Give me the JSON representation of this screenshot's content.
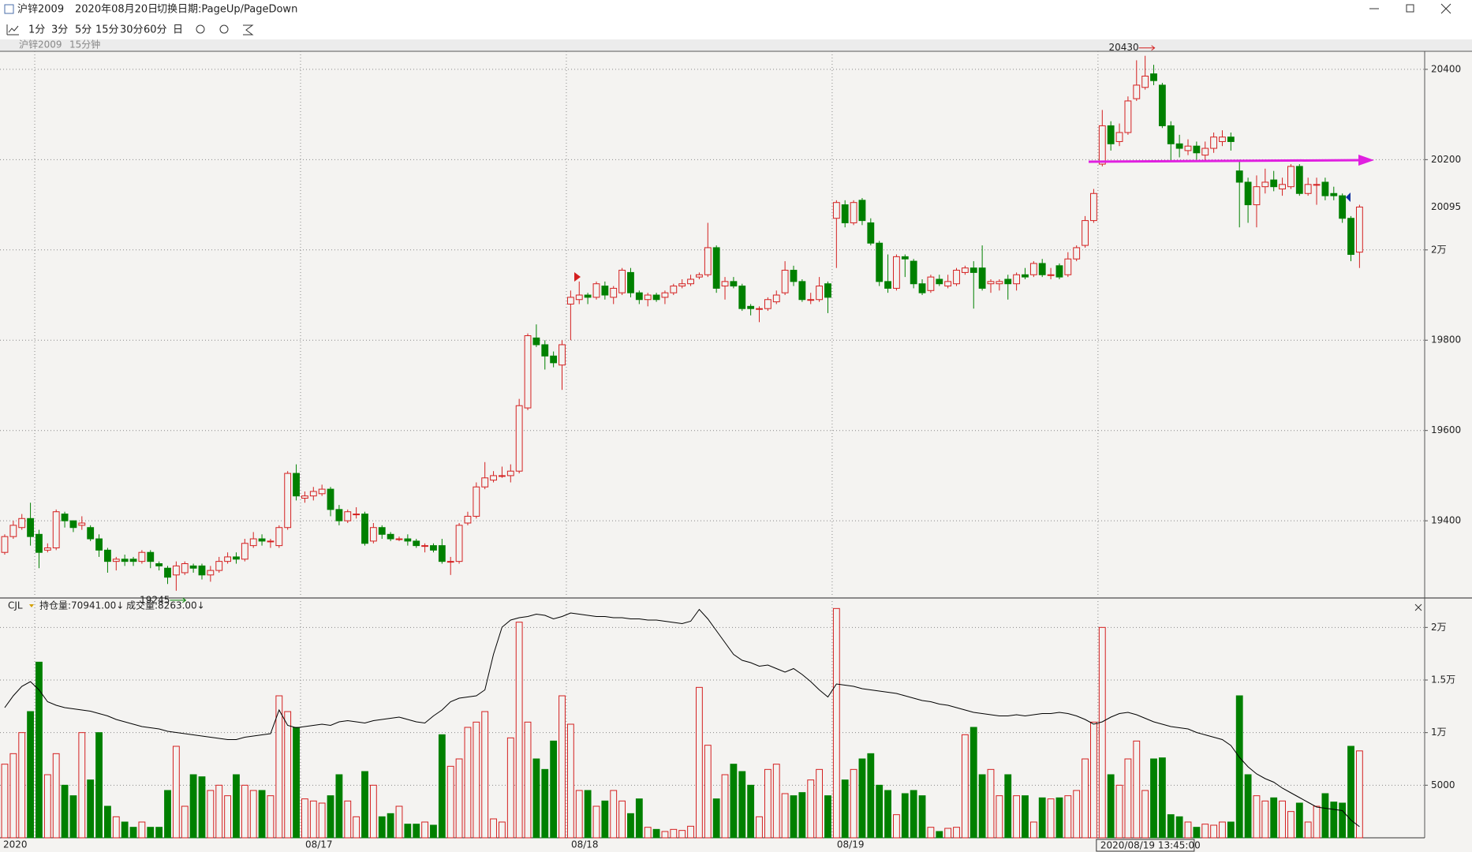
{
  "window": {
    "title": "沪锌2009",
    "date": "2020年08月20日",
    "hint": "切换日期:PageUp/PageDown"
  },
  "toolbar": [
    "1分",
    "3分",
    "5分",
    "15分",
    "30分",
    "60分",
    "日"
  ],
  "panel_header": {
    "symbol": "沪锌2009",
    "period": "15分钟"
  },
  "chart_data": [
    {
      "type": "candlestick",
      "up_color": "#d42020",
      "down_color": "#008000",
      "open": [
        19330,
        19365,
        19385,
        19405,
        19370,
        19335,
        19340,
        19415,
        19400,
        19390,
        19385,
        19360,
        19335,
        19310,
        19315,
        19315,
        19310,
        19330,
        19305,
        19295,
        19280,
        19285,
        19300,
        19300,
        19280,
        19290,
        19310,
        19320,
        19315,
        19345,
        19360,
        19355,
        19345,
        19385,
        19505,
        19450,
        19455,
        19460,
        19470,
        19425,
        19400,
        19415,
        19415,
        19355,
        19385,
        19370,
        19360,
        19360,
        19355,
        19345,
        19345,
        19345,
        19310,
        19310,
        19395,
        19410,
        19475,
        19490,
        19500,
        19500,
        19510,
        19650,
        19805,
        19790,
        19765,
        19745,
        19880,
        19890,
        19900,
        19895,
        19920,
        19895,
        19905,
        19950,
        19905,
        19890,
        19900,
        19895,
        19905,
        19920,
        19925,
        19940,
        19945,
        20005,
        19920,
        19930,
        19920,
        19875,
        19870,
        19870,
        19885,
        19905,
        19955,
        19930,
        19890,
        19890,
        19925,
        20070,
        20100,
        20060,
        20110,
        20060,
        20015,
        19930,
        19915,
        19985,
        19975,
        19925,
        19910,
        19935,
        19920,
        19925,
        19950,
        19960,
        19960,
        19925,
        19925,
        19935,
        19925,
        19945,
        19945,
        19970,
        19945,
        19965,
        19945,
        19980,
        20010,
        20065,
        20190,
        20275,
        20240,
        20260,
        20335,
        20360,
        20390,
        20365,
        20275,
        20235,
        20220,
        20230,
        20210,
        20225,
        20240,
        20250,
        20175,
        20150,
        20100,
        20140,
        20155,
        20135,
        20140,
        20185,
        20125,
        20145,
        20150,
        20125,
        20120,
        20070,
        19995
      ],
      "high": [
        19370,
        19400,
        19415,
        19440,
        19380,
        19350,
        19425,
        19420,
        19400,
        19410,
        19390,
        19370,
        19340,
        19320,
        19325,
        19320,
        19335,
        19335,
        19310,
        19300,
        19310,
        19310,
        19305,
        19305,
        19300,
        19320,
        19330,
        19330,
        19360,
        19375,
        19370,
        19360,
        19390,
        19510,
        19525,
        19465,
        19475,
        19480,
        19475,
        19435,
        19425,
        19430,
        19420,
        19395,
        19390,
        19375,
        19365,
        19370,
        19360,
        19350,
        19350,
        19360,
        19320,
        19395,
        19420,
        19485,
        19530,
        19510,
        19520,
        19525,
        19670,
        19815,
        19835,
        19800,
        19775,
        19800,
        19910,
        19930,
        19905,
        19930,
        19930,
        19920,
        19960,
        19960,
        19910,
        19905,
        19905,
        19910,
        19925,
        19935,
        19945,
        19950,
        20060,
        20010,
        19940,
        19940,
        19925,
        19880,
        19875,
        19895,
        19910,
        19975,
        19965,
        19935,
        19905,
        19940,
        19930,
        20110,
        20110,
        20110,
        20115,
        20070,
        20020,
        19990,
        19990,
        19990,
        19980,
        19935,
        19945,
        19945,
        19945,
        19960,
        19965,
        19975,
        20010,
        19935,
        19935,
        19945,
        19950,
        19960,
        19975,
        19980,
        19960,
        19970,
        19995,
        20010,
        20075,
        20135,
        20310,
        20285,
        20280,
        20340,
        20420,
        20430,
        20410,
        20370,
        20285,
        20255,
        20245,
        20240,
        20240,
        20260,
        20265,
        20260,
        20200,
        20160,
        20165,
        20180,
        20175,
        20160,
        20190,
        20190,
        20160,
        20160,
        20160,
        20140,
        20125,
        20075,
        20100
      ],
      "low": [
        19325,
        19360,
        19380,
        19345,
        19295,
        19330,
        19335,
        19385,
        19375,
        19380,
        19355,
        19320,
        19285,
        19290,
        19300,
        19300,
        19305,
        19295,
        19290,
        19260,
        19245,
        19280,
        19285,
        19270,
        19265,
        19285,
        19305,
        19305,
        19310,
        19340,
        19345,
        19340,
        19340,
        19380,
        19445,
        19440,
        19445,
        19455,
        19410,
        19390,
        19395,
        19405,
        19345,
        19350,
        19360,
        19355,
        19355,
        19345,
        19340,
        19330,
        19330,
        19305,
        19280,
        19305,
        19390,
        19405,
        19470,
        19485,
        19495,
        19485,
        19505,
        19645,
        19785,
        19735,
        19740,
        19690,
        19800,
        19880,
        19880,
        19890,
        19890,
        19880,
        19900,
        19895,
        19880,
        19875,
        19885,
        19880,
        19900,
        19915,
        19920,
        19935,
        19940,
        19905,
        19890,
        19915,
        19865,
        19855,
        19840,
        19865,
        19880,
        19900,
        19920,
        19885,
        19880,
        19885,
        19860,
        19960,
        20050,
        20055,
        20055,
        20010,
        19920,
        19905,
        19910,
        19940,
        19915,
        19900,
        19905,
        19920,
        19915,
        19920,
        19945,
        19870,
        19910,
        19905,
        19910,
        19890,
        19910,
        19935,
        19940,
        19940,
        19935,
        19935,
        19940,
        19975,
        20005,
        20060,
        20185,
        20220,
        20230,
        20255,
        20330,
        20355,
        20365,
        20270,
        20195,
        20205,
        20210,
        20200,
        20195,
        20215,
        20230,
        20220,
        20050,
        20060,
        20050,
        20125,
        20130,
        20120,
        20135,
        20120,
        20120,
        20100,
        20110,
        20110,
        20060,
        19975,
        19960
      ],
      "close": [
        19365,
        19390,
        19405,
        19365,
        19330,
        19340,
        19420,
        19400,
        19385,
        19395,
        19360,
        19335,
        19310,
        19315,
        19310,
        19310,
        19330,
        19310,
        19300,
        19275,
        19300,
        19305,
        19295,
        19280,
        19290,
        19310,
        19320,
        19315,
        19350,
        19360,
        19355,
        19355,
        19385,
        19505,
        19455,
        19455,
        19465,
        19470,
        19425,
        19400,
        19420,
        19415,
        19350,
        19385,
        19370,
        19360,
        19360,
        19355,
        19345,
        19345,
        19335,
        19310,
        19310,
        19390,
        19410,
        19475,
        19495,
        19500,
        19500,
        19510,
        19655,
        19810,
        19790,
        19765,
        19750,
        19790,
        19895,
        19900,
        19895,
        19925,
        19900,
        19915,
        19955,
        19905,
        19890,
        19900,
        19890,
        19905,
        19920,
        19925,
        19935,
        19945,
        20005,
        19915,
        19930,
        19920,
        19870,
        19870,
        19870,
        19890,
        19900,
        19955,
        19930,
        19890,
        19890,
        19920,
        19895,
        20105,
        20060,
        20105,
        20065,
        20015,
        19930,
        19915,
        19985,
        19980,
        19925,
        19905,
        19940,
        19925,
        19930,
        19955,
        19960,
        19950,
        19915,
        19930,
        19930,
        19925,
        19945,
        19940,
        19970,
        19945,
        19945,
        19940,
        19980,
        20005,
        20065,
        20125,
        20275,
        20235,
        20260,
        20330,
        20365,
        20385,
        20375,
        20275,
        20235,
        20225,
        20230,
        20215,
        20225,
        20250,
        20250,
        20240,
        20150,
        20100,
        20140,
        20150,
        20140,
        20145,
        20185,
        20125,
        20145,
        20145,
        20120,
        20120,
        20070,
        19990,
        20095
      ],
      "xlim": [
        -0.55,
        165.6
      ],
      "ylim": [
        19229,
        20440
      ],
      "grid": true,
      "yticks": [
        20400,
        20200,
        {
          "value": 20000,
          "label": "2万"
        },
        19800,
        19600,
        19400
      ],
      "xticks": [
        {
          "value": 3.5,
          "label": "2020"
        },
        {
          "value": 34.5,
          "label": "08/17"
        },
        {
          "value": 65.5,
          "label": "08/18"
        },
        {
          "value": 96.5,
          "label": "08/19"
        }
      ],
      "cursor": {
        "value": 127.5,
        "label": "2020/08/19 13:45:00"
      }
    },
    {
      "type": "volume",
      "title": "CJL",
      "ylim": [
        0,
        22500
      ],
      "y2lim": [
        70000,
        90000
      ],
      "yticks": [
        5000,
        {
          "value": 10000,
          "label": "1万"
        },
        {
          "value": 15000,
          "label": "1.5万"
        },
        {
          "value": 20000,
          "label": "2万"
        }
      ],
      "series": [
        {
          "legend": "持仓量:70941.00↓",
          "axis": "y2",
          "color": "#000000",
          "values": [
            81000,
            82000,
            82800,
            83200,
            82500,
            81500,
            81200,
            81000,
            80900,
            80800,
            80700,
            80500,
            80300,
            80000,
            79800,
            79600,
            79400,
            79300,
            79200,
            79000,
            78900,
            78800,
            78700,
            78600,
            78500,
            78400,
            78300,
            78300,
            78500,
            78600,
            78700,
            78800,
            80800,
            79500,
            79300,
            79400,
            79500,
            79600,
            79500,
            79800,
            79900,
            79800,
            79700,
            79900,
            80000,
            80100,
            80200,
            80000,
            79800,
            79700,
            80300,
            80800,
            81500,
            81800,
            81900,
            82000,
            82500,
            85500,
            87800,
            88400,
            88600,
            88700,
            88900,
            88800,
            88500,
            88700,
            89000,
            88900,
            88800,
            88700,
            88700,
            88600,
            88600,
            88500,
            88500,
            88400,
            88400,
            88300,
            88200,
            88100,
            88300,
            89300,
            88500,
            87500,
            86500,
            85500,
            85000,
            84800,
            84500,
            84600,
            84300,
            84000,
            84300,
            83800,
            83200,
            82500,
            81900,
            83000,
            82900,
            82800,
            82600,
            82500,
            82400,
            82300,
            82200,
            82000,
            81800,
            81600,
            81500,
            81300,
            81200,
            81000,
            80800,
            80600,
            80500,
            80400,
            80300,
            80300,
            80400,
            80300,
            80400,
            80500,
            80500,
            80600,
            80500,
            80300,
            80000,
            79600,
            79800,
            80200,
            80500,
            80600,
            80400,
            80100,
            79800,
            79600,
            79400,
            79300,
            79200,
            78900,
            78700,
            78500,
            78300,
            77800,
            76800,
            76000,
            75400,
            75000,
            74700,
            74200,
            73800,
            73400,
            73000,
            72600,
            72500,
            72400,
            72300,
            71500,
            70941
          ]
        },
        {
          "legend": "成交量:8263.00↓",
          "color": "#d42020",
          "values": [
            7000,
            8000,
            10000,
            12000,
            16700,
            6000,
            8000,
            5000,
            4000,
            10000,
            5500,
            10000,
            3000,
            2000,
            1500,
            1000,
            1500,
            1000,
            1000,
            4500,
            8700,
            3000,
            6000,
            5800,
            4500,
            5000,
            4000,
            6000,
            5000,
            4500,
            4500,
            4000,
            13500,
            12000,
            10500,
            3700,
            3500,
            3300,
            4000,
            6000,
            3500,
            2000,
            6300,
            5000,
            2000,
            2300,
            3000,
            1300,
            1300,
            1500,
            1200,
            9800,
            6800,
            7500,
            10500,
            11000,
            12000,
            1800,
            1500,
            9500,
            20500,
            11000,
            7500,
            6500,
            9200,
            13500,
            10800,
            4500,
            4500,
            3000,
            3500,
            4500,
            3500,
            2300,
            3700,
            1000,
            800,
            600,
            800,
            700,
            1100,
            14300,
            8800,
            3700,
            6000,
            7000,
            6300,
            5000,
            2000,
            6500,
            7000,
            4200,
            4000,
            4300,
            5500,
            6500,
            4000,
            21800,
            5500,
            6500,
            7500,
            8000,
            5000,
            4500,
            2200,
            4200,
            4500,
            4000,
            1000,
            600,
            900,
            1000,
            9800,
            10500,
            6000,
            6500,
            4000,
            6000,
            4000,
            4000,
            1500,
            3800,
            3700,
            3800,
            4000,
            4500,
            7500,
            11000,
            20000,
            6000,
            5000,
            7500,
            9200,
            4500,
            7500,
            7600,
            2200,
            2000,
            1500,
            1000,
            1300,
            1200,
            1500,
            1500,
            13500,
            6000,
            4000,
            3500,
            3800,
            3500,
            2500,
            3300,
            1500,
            3000,
            4200,
            3400,
            3300,
            8700,
            8263
          ]
        }
      ]
    }
  ]
}
